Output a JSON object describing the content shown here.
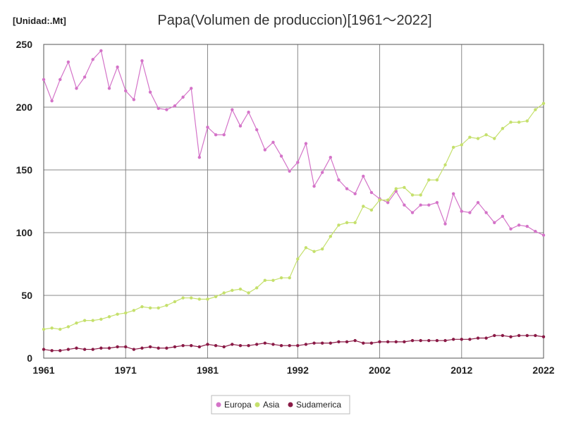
{
  "chart_data": {
    "type": "line",
    "title": "Papa(Volumen de produccion)[1961～2022]",
    "unit_label": "[Unidad:.Mt]",
    "xlabel": "",
    "ylabel": "",
    "xlim": [
      1961,
      2022
    ],
    "ylim": [
      0,
      250
    ],
    "x_ticks": [
      "1961",
      "1971",
      "1981",
      "1992",
      "2002",
      "2012",
      "2022"
    ],
    "y_ticks": [
      "0",
      "50",
      "100",
      "150",
      "200",
      "250"
    ],
    "grid": true,
    "legend_position": "bottom",
    "x": [
      1961,
      1962,
      1963,
      1964,
      1965,
      1966,
      1967,
      1968,
      1969,
      1970,
      1971,
      1972,
      1973,
      1974,
      1975,
      1976,
      1977,
      1978,
      1979,
      1980,
      1981,
      1982,
      1983,
      1984,
      1985,
      1986,
      1987,
      1988,
      1989,
      1990,
      1991,
      1992,
      1993,
      1994,
      1995,
      1996,
      1997,
      1998,
      1999,
      2000,
      2001,
      2002,
      2003,
      2004,
      2005,
      2006,
      2007,
      2008,
      2009,
      2010,
      2011,
      2012,
      2013,
      2014,
      2015,
      2016,
      2017,
      2018,
      2019,
      2020,
      2021,
      2022
    ],
    "series": [
      {
        "name": "Europa",
        "color": "#d473c8",
        "values": [
          222,
          205,
          222,
          236,
          215,
          224,
          238,
          245,
          215,
          232,
          213,
          206,
          237,
          212,
          199,
          198,
          201,
          208,
          215,
          160,
          184,
          178,
          178,
          198,
          185,
          196,
          182,
          166,
          172,
          161,
          149,
          156,
          171,
          137,
          148,
          160,
          142,
          135,
          131,
          145,
          132,
          127,
          124,
          133,
          122,
          116,
          122,
          122,
          124,
          107,
          131,
          117,
          116,
          124,
          116,
          108,
          113,
          103,
          106,
          105,
          101,
          98
        ]
      },
      {
        "name": "Asia",
        "color": "#c5e06c",
        "values": [
          23,
          24,
          23,
          25,
          28,
          30,
          30,
          31,
          33,
          35,
          36,
          38,
          41,
          40,
          40,
          42,
          45,
          48,
          48,
          47,
          47,
          49,
          52,
          54,
          55,
          52,
          56,
          62,
          62,
          64,
          64,
          79,
          88,
          85,
          87,
          97,
          106,
          108,
          108,
          121,
          118,
          126,
          126,
          135,
          136,
          130,
          130,
          142,
          142,
          154,
          168,
          170,
          176,
          175,
          178,
          175,
          183,
          188,
          188,
          189,
          198,
          203
        ]
      },
      {
        "name": "Sudamerica",
        "color": "#8a1a46",
        "values": [
          7,
          6,
          6,
          7,
          8,
          7,
          7,
          8,
          8,
          9,
          9,
          7,
          8,
          9,
          8,
          8,
          9,
          10,
          10,
          9,
          11,
          10,
          9,
          11,
          10,
          10,
          11,
          12,
          11,
          10,
          10,
          10,
          11,
          12,
          12,
          12,
          13,
          13,
          14,
          12,
          12,
          13,
          13,
          13,
          13,
          14,
          14,
          14,
          14,
          14,
          15,
          15,
          15,
          16,
          16,
          18,
          18,
          17,
          18,
          18,
          18,
          17
        ]
      }
    ]
  }
}
